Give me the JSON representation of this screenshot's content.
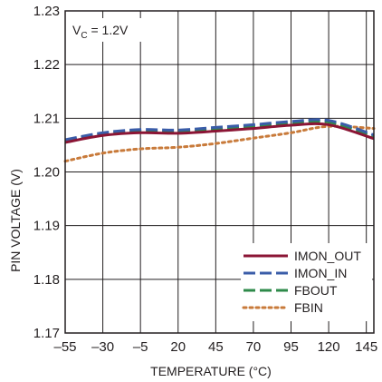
{
  "chart_data": {
    "type": "line",
    "title": "",
    "xlabel": "TEMPERATURE (°C)",
    "ylabel": "PIN VOLTAGE (V)",
    "xlim": [
      -55,
      150
    ],
    "ylim": [
      1.17,
      1.23
    ],
    "x_ticks": [
      -55,
      -30,
      -5,
      20,
      45,
      70,
      95,
      120,
      145
    ],
    "x_tick_labels": [
      "–55",
      "–30",
      "–5",
      "20",
      "45",
      "70",
      "95",
      "120",
      "145"
    ],
    "y_ticks": [
      1.17,
      1.18,
      1.19,
      1.2,
      1.21,
      1.22,
      1.23
    ],
    "y_tick_labels": [
      "1.17",
      "1.18",
      "1.19",
      "1.20",
      "1.21",
      "1.22",
      "1.23"
    ],
    "grid": true,
    "legend_position": "bottom-right",
    "annotation": {
      "prefix": "V",
      "subscript": "C",
      "suffix": " = 1.2V"
    },
    "series": [
      {
        "name": "IMON_OUT",
        "color": "#8b1535",
        "style": "solid",
        "x": [
          -55,
          -30,
          -5,
          20,
          45,
          70,
          95,
          120,
          150
        ],
        "y": [
          1.2055,
          1.2068,
          1.2073,
          1.2072,
          1.2076,
          1.2081,
          1.2087,
          1.2088,
          1.2062
        ]
      },
      {
        "name": "IMON_IN",
        "color": "#3a5ca8",
        "style": "dashed",
        "x": [
          -55,
          -30,
          -5,
          20,
          45,
          70,
          95,
          120,
          150
        ],
        "y": [
          1.206,
          1.2073,
          1.2079,
          1.2078,
          1.2083,
          1.2088,
          1.2094,
          1.2096,
          1.2069
        ]
      },
      {
        "name": "FBOUT",
        "color": "#2e8a4a",
        "style": "dashed",
        "x": [
          -55,
          -30,
          -5,
          20,
          45,
          70,
          95,
          120,
          150
        ],
        "y": [
          1.2058,
          1.2071,
          1.2076,
          1.2075,
          1.208,
          1.2085,
          1.2091,
          1.2093,
          1.2066
        ]
      },
      {
        "name": "FBIN",
        "color": "#c87a3a",
        "style": "dotted",
        "x": [
          -55,
          -30,
          -5,
          20,
          45,
          70,
          95,
          120,
          150
        ],
        "y": [
          1.202,
          1.2035,
          1.2043,
          1.2046,
          1.2053,
          1.2063,
          1.2073,
          1.2085,
          1.2081
        ]
      }
    ]
  }
}
